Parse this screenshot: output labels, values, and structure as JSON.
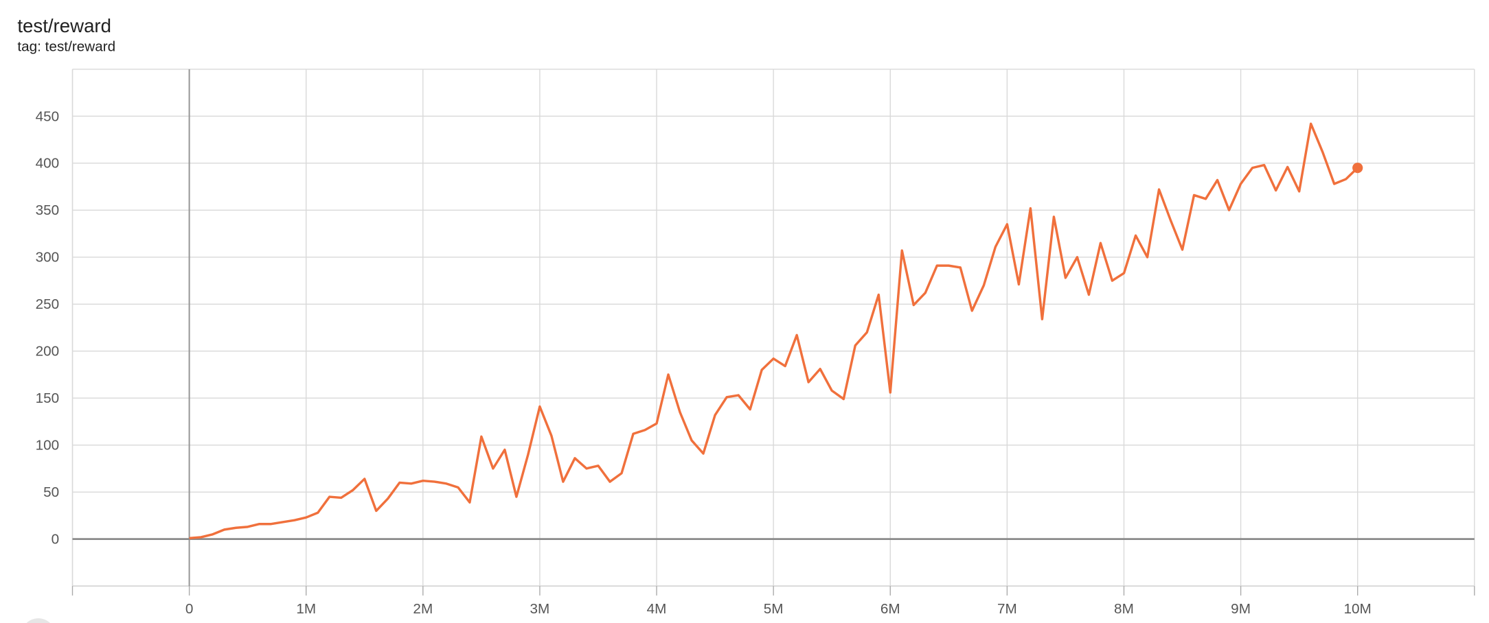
{
  "header": {
    "title": "test/reward",
    "tag": "tag: test/reward"
  },
  "colors": {
    "series": "#f0703c",
    "grid": "#d9d9d9",
    "axis": "#8a8a8a"
  },
  "chart_data": {
    "type": "line",
    "title": "test/reward",
    "xlabel": "",
    "ylabel": "",
    "xlim": [
      -1000000,
      11000000
    ],
    "ylim": [
      -50,
      500
    ],
    "grid": true,
    "xticks": [
      0,
      1000000,
      2000000,
      3000000,
      4000000,
      5000000,
      6000000,
      7000000,
      8000000,
      9000000,
      10000000
    ],
    "xtick_labels": [
      "0",
      "1M",
      "2M",
      "3M",
      "4M",
      "5M",
      "6M",
      "7M",
      "8M",
      "9M",
      "10M"
    ],
    "yticks": [
      0,
      50,
      100,
      150,
      200,
      250,
      300,
      350,
      400,
      450
    ],
    "ytick_labels": [
      "0",
      "50",
      "100",
      "150",
      "200",
      "250",
      "300",
      "350",
      "400",
      "450"
    ],
    "series": [
      {
        "x_step": 100000,
        "values": [
          1,
          2,
          5,
          10,
          12,
          13,
          16,
          16,
          18,
          20,
          23,
          28,
          45,
          44,
          52,
          64,
          30,
          43,
          60,
          59,
          62,
          61,
          59,
          55,
          39,
          109,
          75,
          95,
          45,
          90,
          141,
          110,
          61,
          86,
          75,
          78,
          61,
          70,
          112,
          116,
          123,
          175,
          135,
          105,
          91,
          132,
          151,
          153,
          138,
          180,
          192,
          184,
          217,
          167,
          181,
          158,
          149,
          206,
          220,
          260,
          156,
          307,
          249,
          262,
          291,
          291,
          289,
          243,
          270,
          311,
          335,
          271,
          352,
          234,
          343,
          278,
          300,
          260,
          315,
          275,
          283,
          323,
          300,
          372,
          339,
          308,
          366,
          362,
          382,
          350,
          378,
          395,
          398,
          371,
          396,
          370,
          442,
          412,
          378,
          383,
          395
        ]
      }
    ]
  }
}
